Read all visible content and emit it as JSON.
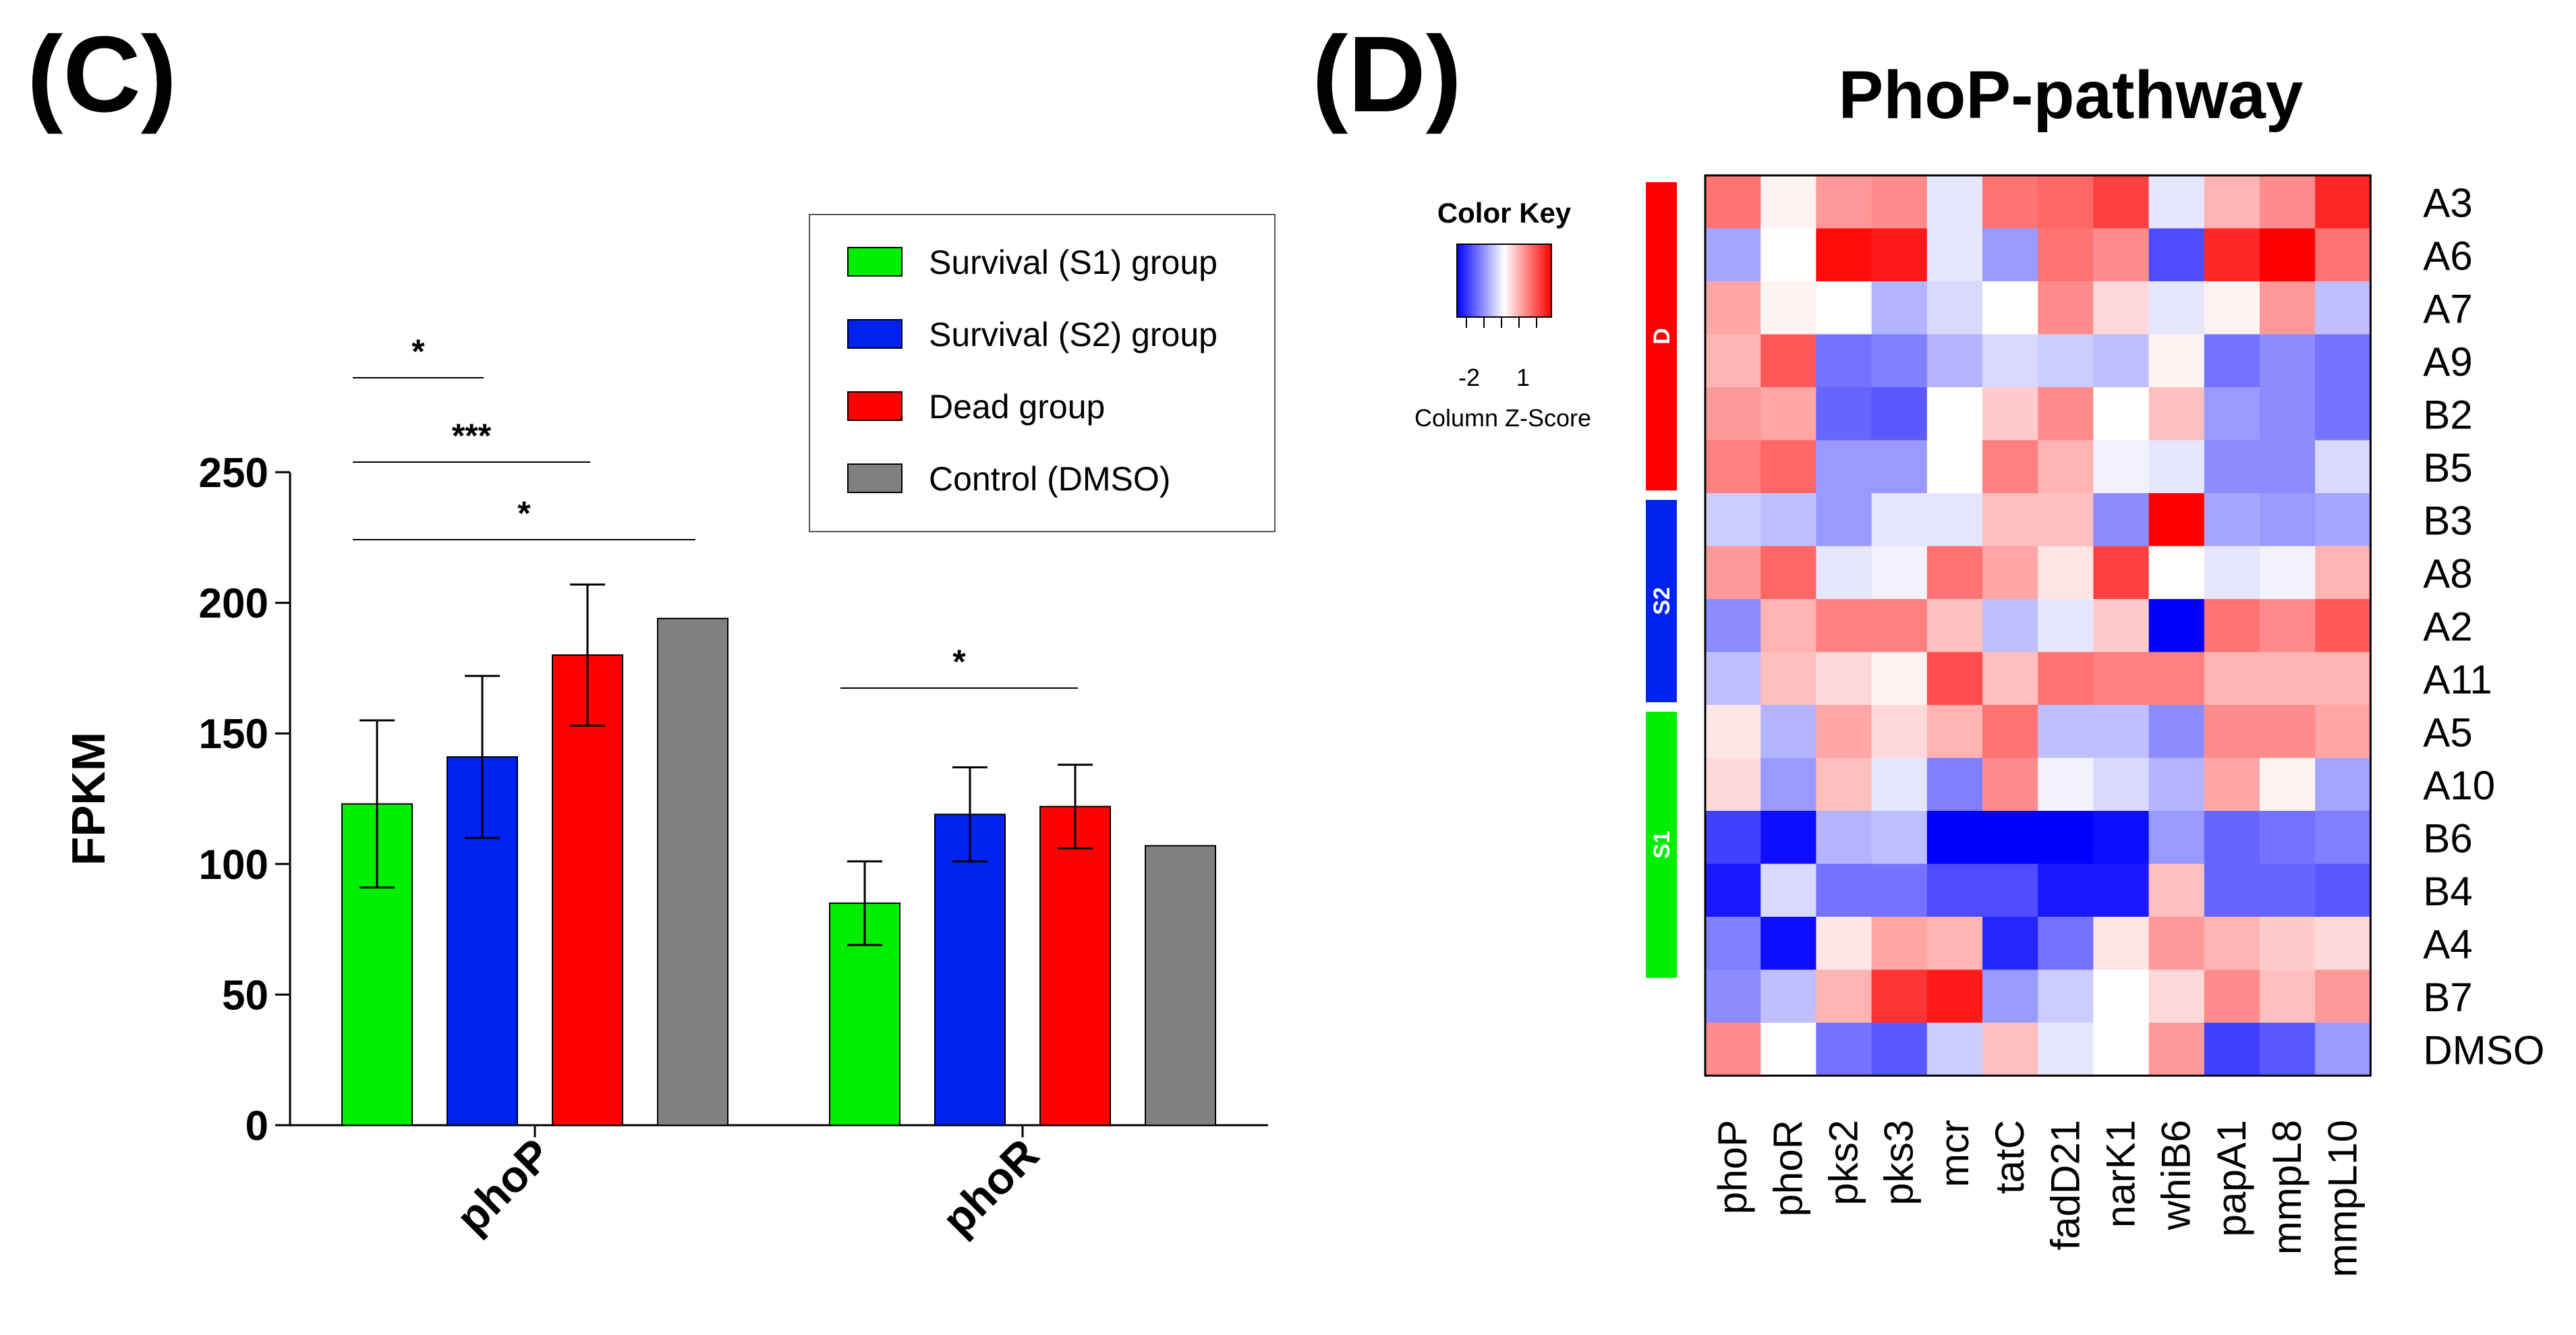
{
  "panels": {
    "c_label": "(C)",
    "d_label": "(D)"
  },
  "chart_data": [
    {
      "type": "bar",
      "panel": "(C)",
      "title": "",
      "xlabel": "",
      "ylabel": "FPKM",
      "ylim": [
        0,
        250
      ],
      "yticks": [
        "0",
        "50",
        "100",
        "150",
        "200",
        "250"
      ],
      "categories": [
        "phoP",
        "phoR"
      ],
      "series": [
        {
          "name": "Survival (S1) group",
          "color": "#00ee00",
          "values": [
            123,
            85
          ],
          "error": [
            32,
            16
          ]
        },
        {
          "name": "Survival (S2) group",
          "color": "#0022ee",
          "values": [
            141,
            119
          ],
          "error": [
            31,
            18
          ]
        },
        {
          "name": "Dead group",
          "color": "#ff0000",
          "values": [
            180,
            122
          ],
          "error": [
            27,
            16
          ]
        },
        {
          "name": "Control (DMSO)",
          "color": "#808080",
          "values": [
            194,
            107
          ],
          "error": [
            0,
            0
          ]
        }
      ],
      "legend": "top-right",
      "significance": [
        {
          "category": "phoP",
          "from_series": 0,
          "to_series": 1,
          "label": "*"
        },
        {
          "category": "phoP",
          "from_series": 0,
          "to_series": 2,
          "label": "***"
        },
        {
          "category": "phoP",
          "from_series": 0,
          "to_series": 3,
          "label": "*"
        },
        {
          "category": "phoR",
          "from_series": 0,
          "to_series": 2,
          "label": "*"
        }
      ]
    },
    {
      "type": "heatmap",
      "panel": "(D)",
      "title": "PhoP-pathway",
      "color_key": {
        "title": "Color Key",
        "ticks": [
          "-2",
          "1"
        ],
        "label": "Column Z-Score",
        "low_color": "#0000ff",
        "mid_color": "#ffffff",
        "high_color": "#ff0000"
      },
      "columns": [
        "phoP",
        "phoR",
        "pks2",
        "pks3",
        "mcr",
        "tatC",
        "fadD21",
        "narK1",
        "whiB6",
        "papA1",
        "mmpL8",
        "mmpL10"
      ],
      "rows": [
        "A3",
        "A6",
        "A7",
        "A9",
        "B2",
        "B5",
        "B3",
        "A8",
        "A2",
        "A11",
        "A5",
        "A10",
        "B6",
        "B4",
        "A4",
        "B7",
        "DMSO"
      ],
      "row_groups": [
        {
          "label": "D",
          "color": "#ff0000",
          "rows": [
            "A3",
            "A6",
            "A7",
            "A9",
            "B2",
            "B5"
          ]
        },
        {
          "label": "S2",
          "color": "#0022ee",
          "rows": [
            "B3",
            "A8",
            "A2",
            "A11"
          ]
        },
        {
          "label": "S1",
          "color": "#00ee00",
          "rows": [
            "A5",
            "A10",
            "B6",
            "B4",
            "A4",
            "B7"
          ]
        }
      ],
      "values": [
        [
          0.55,
          0.05,
          0.4,
          0.45,
          -0.1,
          0.55,
          0.6,
          0.75,
          -0.1,
          0.3,
          0.45,
          0.85
        ],
        [
          -0.35,
          0.0,
          0.95,
          0.9,
          -0.1,
          -0.4,
          0.55,
          0.45,
          -0.7,
          0.85,
          1.0,
          0.55
        ],
        [
          0.35,
          0.05,
          0.0,
          -0.3,
          -0.15,
          0.0,
          0.45,
          0.15,
          -0.1,
          0.05,
          0.4,
          -0.25
        ],
        [
          0.3,
          0.65,
          -0.55,
          -0.5,
          -0.3,
          -0.15,
          -0.2,
          -0.25,
          0.05,
          -0.55,
          -0.45,
          -0.55
        ],
        [
          0.4,
          0.35,
          -0.6,
          -0.65,
          0.0,
          0.2,
          0.45,
          0.0,
          0.25,
          -0.4,
          -0.45,
          -0.55
        ],
        [
          0.5,
          0.6,
          -0.4,
          -0.4,
          0.0,
          0.5,
          0.3,
          -0.05,
          -0.1,
          -0.45,
          -0.45,
          -0.15
        ],
        [
          -0.2,
          -0.25,
          -0.4,
          -0.1,
          -0.1,
          0.25,
          0.25,
          -0.45,
          1.0,
          -0.35,
          -0.4,
          -0.35
        ],
        [
          0.4,
          0.6,
          -0.1,
          -0.05,
          0.55,
          0.35,
          0.1,
          0.75,
          0.0,
          -0.1,
          -0.05,
          0.3
        ],
        [
          -0.45,
          0.3,
          0.5,
          0.5,
          0.25,
          -0.25,
          -0.1,
          0.2,
          -1.0,
          0.55,
          0.45,
          0.65
        ],
        [
          -0.25,
          0.25,
          0.15,
          0.05,
          0.7,
          0.25,
          0.55,
          0.5,
          0.5,
          0.3,
          0.3,
          0.3
        ],
        [
          0.1,
          -0.3,
          0.35,
          0.15,
          0.3,
          0.55,
          -0.25,
          -0.25,
          -0.45,
          0.45,
          0.45,
          0.35
        ],
        [
          0.15,
          -0.4,
          0.25,
          -0.1,
          -0.5,
          0.45,
          -0.05,
          -0.15,
          -0.3,
          0.35,
          0.05,
          -0.35
        ],
        [
          -0.75,
          -0.95,
          -0.3,
          -0.25,
          -1.0,
          -1.0,
          -1.0,
          -0.95,
          -0.4,
          -0.6,
          -0.55,
          -0.5
        ],
        [
          -0.9,
          -0.15,
          -0.55,
          -0.55,
          -0.7,
          -0.7,
          -0.9,
          -0.9,
          0.25,
          -0.6,
          -0.6,
          -0.65
        ],
        [
          -0.5,
          -0.95,
          0.1,
          0.35,
          0.3,
          -0.85,
          -0.55,
          0.1,
          0.4,
          0.3,
          0.2,
          0.15
        ],
        [
          -0.45,
          -0.25,
          0.3,
          0.8,
          0.9,
          -0.4,
          -0.2,
          0.0,
          0.15,
          0.45,
          0.25,
          0.4
        ],
        [
          0.45,
          0.0,
          -0.55,
          -0.65,
          -0.2,
          0.25,
          -0.1,
          0.0,
          0.4,
          -0.75,
          -0.65,
          -0.4
        ]
      ]
    }
  ]
}
